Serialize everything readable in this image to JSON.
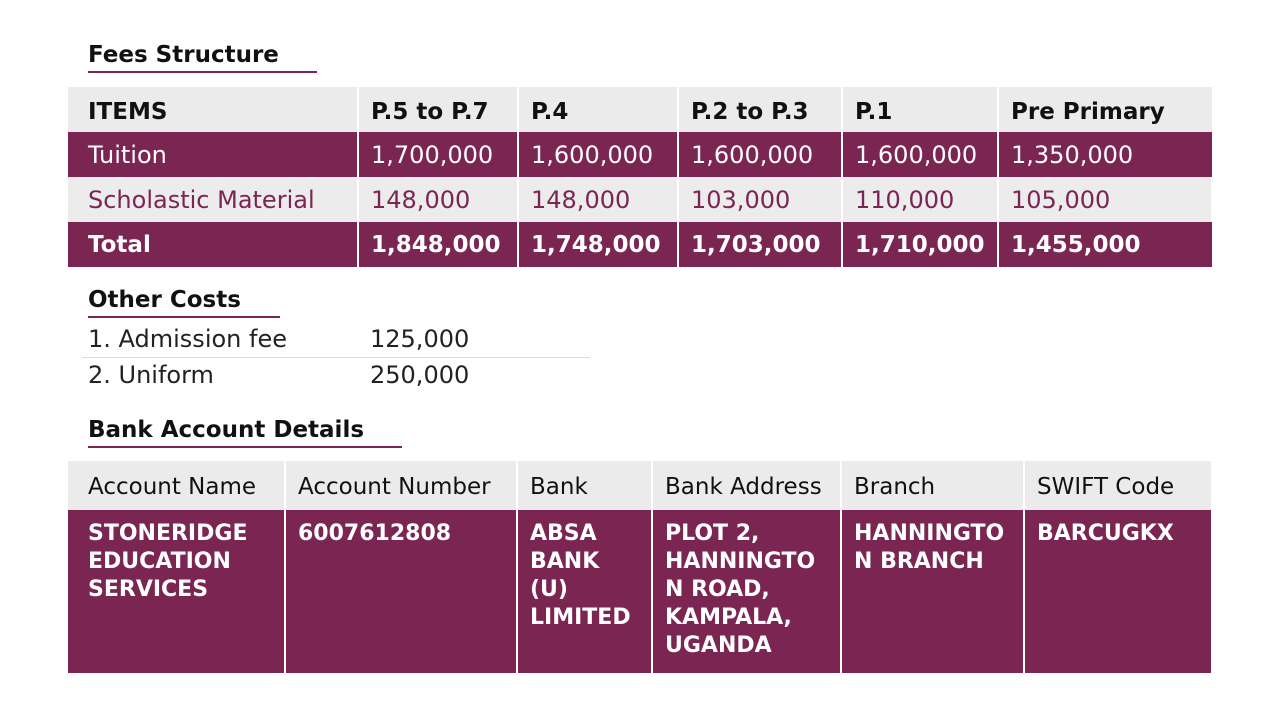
{
  "fees": {
    "title": "Fees Structure",
    "headers": [
      "ITEMS",
      "P.5 to P.7",
      "P.4",
      "P.2 to P.3",
      "P.1",
      "Pre Primary"
    ],
    "rows": [
      {
        "item": "Tuition",
        "values": [
          "1,700,000",
          "1,600,000",
          "1,600,000",
          "1,600,000",
          "1,350,000"
        ]
      },
      {
        "item": "Scholastic Material",
        "values": [
          "148,000",
          "148,000",
          "103,000",
          "110,000",
          "105,000"
        ]
      },
      {
        "item": "Total",
        "values": [
          "1,848,000",
          "1,748,000",
          "1,703,000",
          "1,710,000",
          "1,455,000"
        ]
      }
    ]
  },
  "other_costs": {
    "title": "Other Costs",
    "items": [
      {
        "label": "1. Admission fee",
        "amount": "125,000"
      },
      {
        "label": "2. Uniform",
        "amount": "250,000"
      }
    ]
  },
  "bank": {
    "title": "Bank Account Details",
    "headers": [
      "Account Name",
      "Account Number",
      "Bank",
      "Bank Address",
      "Branch",
      "SWIFT Code"
    ],
    "values": [
      "STONERIDGE EDUCATION SERVICES",
      "6007612808",
      "ABSA BANK (U) LIMITED",
      "PLOT 2, HANNINGTON ROAD, KAMPALA, UGANDA",
      "HANNINGTON BRANCH",
      "BARCUGKX"
    ]
  },
  "colors": {
    "accent": "#7b2552",
    "header_bg": "#ebebeb",
    "light_row_bg": "#ececec"
  }
}
